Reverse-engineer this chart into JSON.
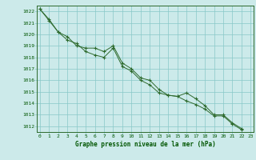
{
  "line1": [
    1022.2,
    1021.3,
    1020.2,
    1019.8,
    1019.0,
    1018.8,
    1018.8,
    1018.5,
    1019.0,
    1017.5,
    1017.0,
    1016.2,
    1016.0,
    1015.2,
    1014.7,
    1014.6,
    1014.9,
    1014.4,
    1013.8,
    1013.0,
    1013.0,
    1012.3,
    1011.8
  ],
  "line2": [
    1022.2,
    1021.2,
    1020.2,
    1019.5,
    1019.2,
    1018.5,
    1018.2,
    1018.0,
    1018.8,
    1017.2,
    1016.8,
    1016.0,
    1015.6,
    1014.9,
    1014.7,
    1014.6,
    1014.2,
    1013.9,
    1013.5,
    1012.9,
    1012.9,
    1012.2,
    1011.7
  ],
  "x": [
    0,
    1,
    2,
    3,
    4,
    5,
    6,
    7,
    8,
    9,
    10,
    11,
    12,
    13,
    14,
    15,
    16,
    17,
    18,
    19,
    20,
    21,
    22
  ],
  "ylim": [
    1011.5,
    1022.5
  ],
  "yticks": [
    1012,
    1013,
    1014,
    1015,
    1016,
    1017,
    1018,
    1019,
    1020,
    1021,
    1022
  ],
  "xticks": [
    0,
    1,
    2,
    3,
    4,
    5,
    6,
    7,
    8,
    9,
    10,
    11,
    12,
    13,
    14,
    15,
    16,
    17,
    18,
    19,
    20,
    21,
    22,
    23
  ],
  "xlabel": "Graphe pression niveau de la mer (hPa)",
  "line_color": "#2d6a2d",
  "marker": "+",
  "bg_color": "#cceaea",
  "grid_color": "#88c8c8",
  "text_color": "#005500",
  "label_color": "#005500"
}
